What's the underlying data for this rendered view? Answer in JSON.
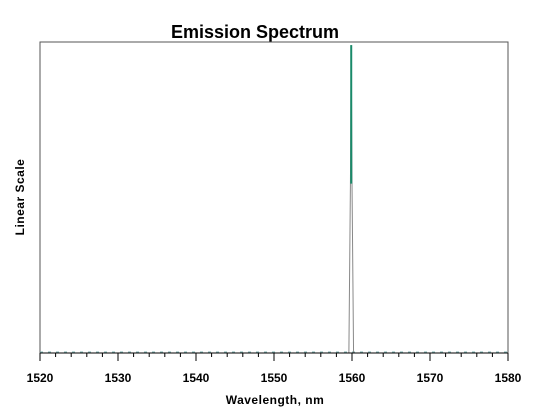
{
  "chart_data": {
    "type": "line",
    "title": "Emission Spectrum",
    "xlabel": "Wavelength, nm",
    "ylabel": "Linear Scale",
    "xlim": [
      1520,
      1580
    ],
    "ylim": [
      0,
      1
    ],
    "x_ticks": [
      1520,
      1530,
      1540,
      1550,
      1560,
      1570,
      1580
    ],
    "x_minor_step": 2,
    "y_ticks_shown": false,
    "grid": false,
    "legend": "none",
    "series": [
      {
        "color": "#1a7a5a",
        "peak_color": "#1a8a6a",
        "x": [
          1520,
          1530,
          1559.6,
          1559.8,
          1559.9,
          1560.0,
          1560.2,
          1580
        ],
        "y": [
          0,
          0,
          0,
          0.55,
          0.99,
          0.55,
          0,
          0
        ]
      }
    ]
  }
}
